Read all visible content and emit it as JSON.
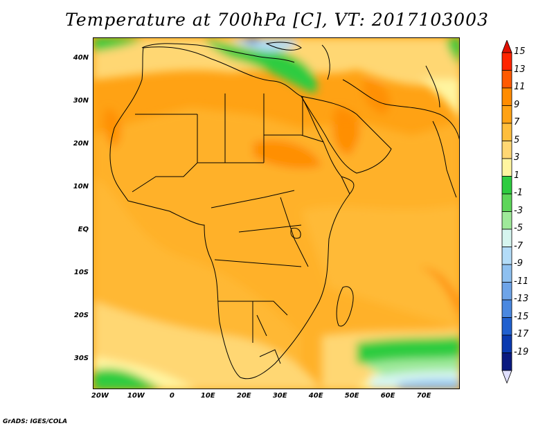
{
  "title": "Temperature at 700hPa [C], VT: 2017103003",
  "credit": "GrADS: IGES/COLA",
  "chart_data": {
    "type": "heatmap",
    "title": "Temperature at 700hPa [C], VT: 2017103003",
    "variable": "Temperature at 700hPa",
    "units": "C",
    "valid_time": "2017103003",
    "lat_ticks": [
      "40N",
      "30N",
      "20N",
      "10N",
      "EQ",
      "10S",
      "20S",
      "30S"
    ],
    "lat_values": [
      40,
      30,
      20,
      10,
      0,
      -10,
      -20,
      -30
    ],
    "lon_ticks": [
      "20W",
      "10W",
      "0",
      "10E",
      "20E",
      "30E",
      "40E",
      "50E",
      "60E",
      "70E"
    ],
    "lon_values": [
      -20,
      -10,
      0,
      10,
      20,
      30,
      40,
      50,
      60,
      70
    ],
    "xlim": [
      -22,
      80
    ],
    "ylim": [
      -37,
      45
    ],
    "colorbar_labels": [
      "15",
      "13",
      "11",
      "9",
      "7",
      "5",
      "3",
      "1",
      "-1",
      "-3",
      "-5",
      "-7",
      "-9",
      "-11",
      "-13",
      "-15",
      "-17",
      "-19"
    ],
    "colorbar_levels": [
      15,
      13,
      11,
      9,
      7,
      5,
      3,
      1,
      -1,
      -3,
      -5,
      -7,
      -9,
      -11,
      -13,
      -15,
      -17,
      -19
    ],
    "colorbar_colors": [
      "#ff2400",
      "#ff5a00",
      "#ff8c00",
      "#ffa214",
      "#ffbe3c",
      "#ffd773",
      "#fff5a0",
      "#2ecc40",
      "#5ed65a",
      "#9fe99a",
      "#d6f5ef",
      "#b3dcf8",
      "#8ec0f0",
      "#6ea4e8",
      "#4a88e0",
      "#2060cf",
      "#0a3ab0",
      "#0a1a80",
      "#e0e0ff"
    ],
    "colorbar_top_color": "#e01000",
    "colorbar_bottom_color": "#e0e0ff",
    "grid": false
  }
}
